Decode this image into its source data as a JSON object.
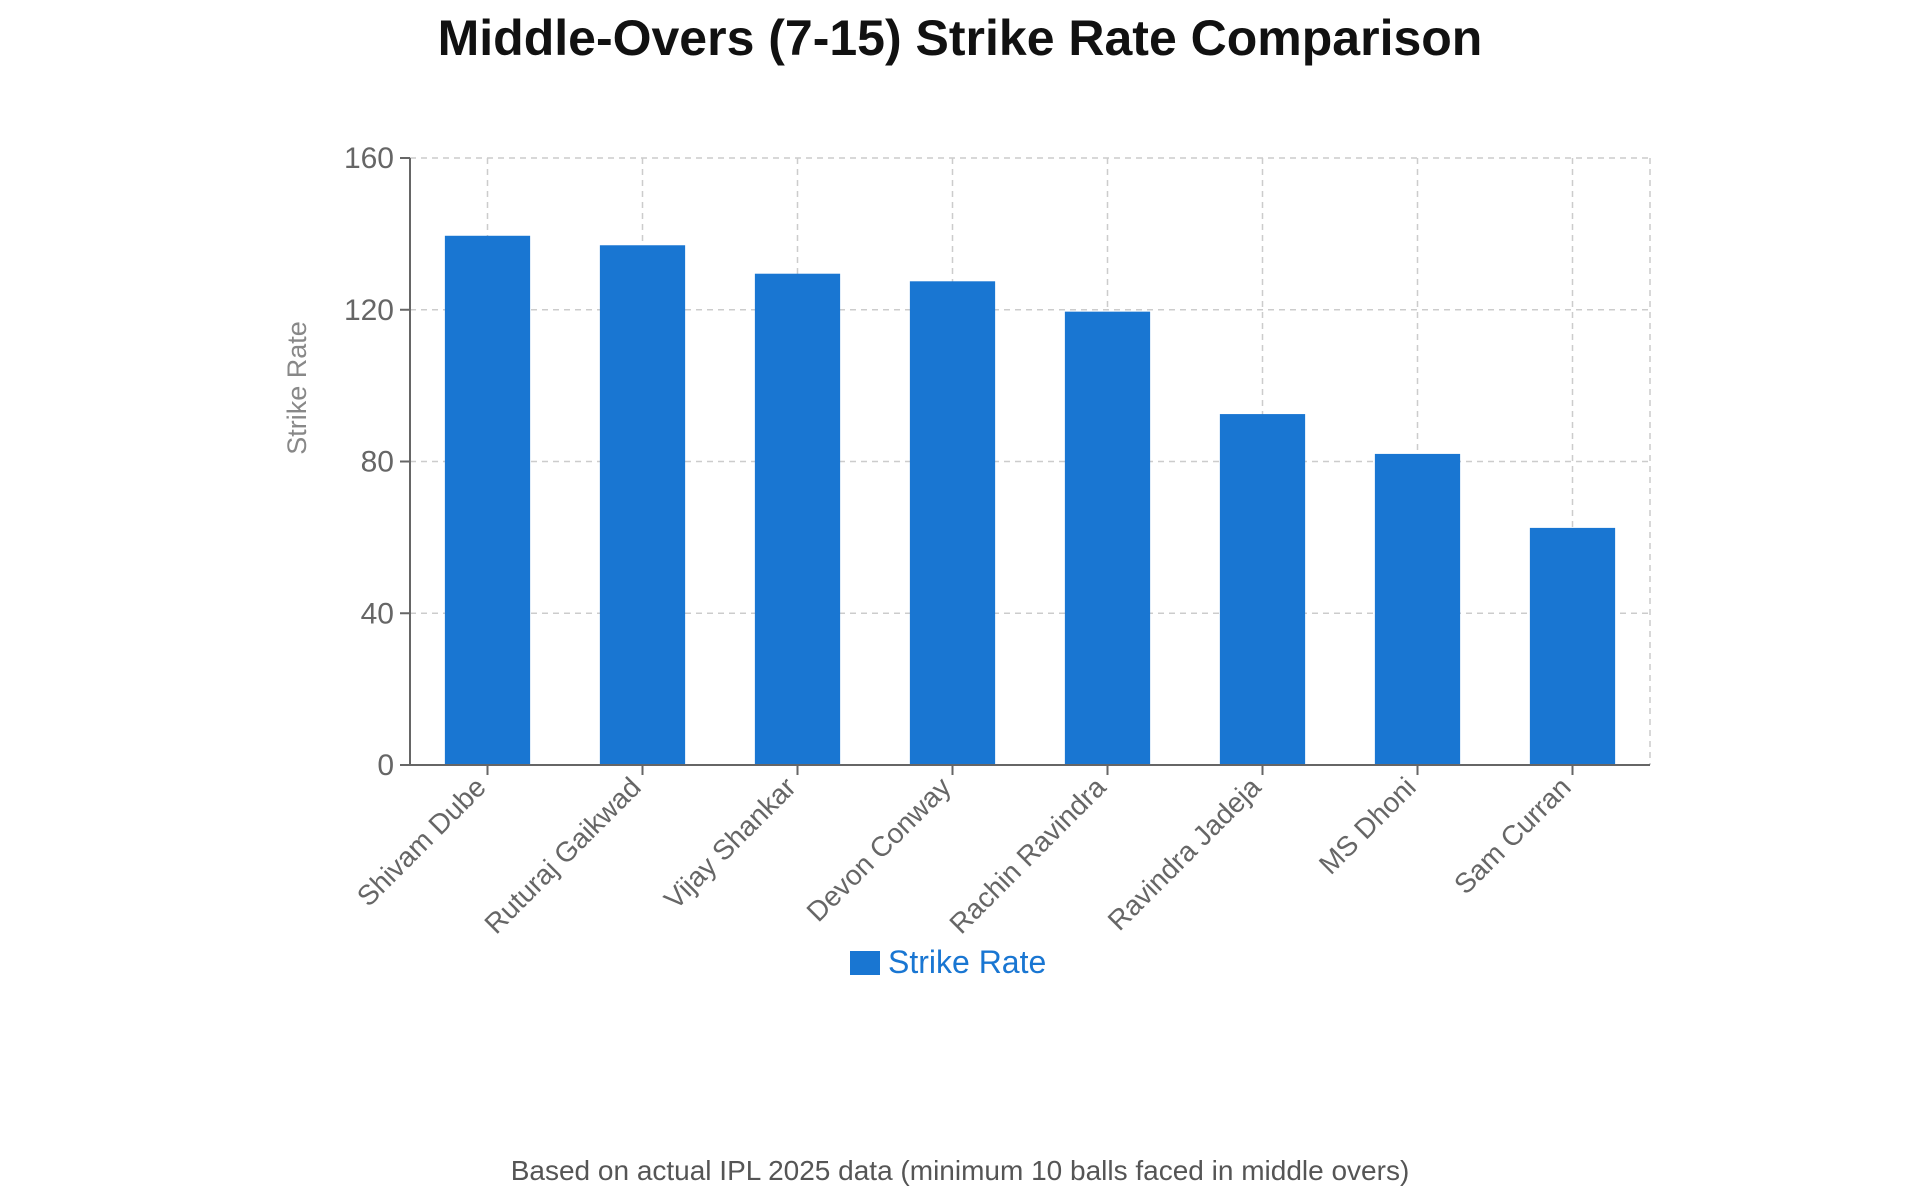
{
  "title": "Middle-Overs (7-15) Strike Rate Comparison",
  "footnote": "Based on actual IPL 2025 data (minimum 10 balls faced in middle overs)",
  "colors": {
    "bar": "#1976d2",
    "legend_text": "#1976d2"
  },
  "chart_data": {
    "type": "bar",
    "title": "Middle-Overs (7-15) Strike Rate Comparison",
    "xlabel": "",
    "ylabel": "Strike Rate",
    "ylim": [
      0,
      160
    ],
    "yticks": [
      0,
      40,
      80,
      120,
      160
    ],
    "categories": [
      "Shivam Dube",
      "Ruturaj Gaikwad",
      "Vijay Shankar",
      "Devon Conway",
      "Rachin Ravindra",
      "Ravindra Jadeja",
      "MS Dhoni",
      "Sam Curran"
    ],
    "series": [
      {
        "name": "Strike Rate",
        "values": [
          139.5,
          137,
          129.5,
          127.5,
          119.5,
          92.5,
          82,
          62.5
        ]
      }
    ],
    "grid": true,
    "legend": "bottom-center"
  }
}
